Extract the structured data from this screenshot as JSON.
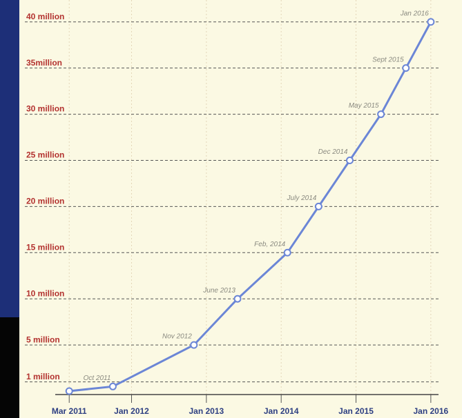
{
  "chart_data": {
    "type": "line",
    "x": [
      "2011-03",
      "2011-10",
      "2012-11",
      "2013-06",
      "2014-02",
      "2014-07",
      "2014-12",
      "2015-05",
      "2015-09",
      "2016-01"
    ],
    "series": [
      {
        "color": "#6b86d6",
        "values": [
          0,
          0.5,
          5,
          10,
          15,
          20,
          25,
          30,
          35,
          40
        ]
      }
    ],
    "point_labels": [
      null,
      "Oct 2011",
      "Nov 2012",
      "June 2013",
      "Feb, 2014",
      "July 2014",
      "Dec 2014",
      "May 2015",
      "Sept 2015",
      "Jan 2016"
    ],
    "xlim": [
      "2010-07",
      "2016-06"
    ],
    "xticks": [
      {
        "value": "2011-03",
        "label": "Mar 2011"
      },
      {
        "value": "2012-01",
        "label": "Jan 2012"
      },
      {
        "value": "2013-01",
        "label": "Jan 2013"
      },
      {
        "value": "2014-01",
        "label": "Jan 2014"
      },
      {
        "value": "2015-01",
        "label": "Jan 2015"
      },
      {
        "value": "2016-01",
        "label": "Jan 2016"
      }
    ],
    "ylim": [
      0,
      42
    ],
    "yticks": [
      {
        "value": 1,
        "label": "1 million"
      },
      {
        "value": 5,
        "label": "5 million"
      },
      {
        "value": 10,
        "label": "10 million"
      },
      {
        "value": 15,
        "label": "15 million"
      },
      {
        "value": 20,
        "label": "20 million"
      },
      {
        "value": 25,
        "label": "25 million"
      },
      {
        "value": 30,
        "label": "30 million"
      },
      {
        "value": 35,
        "label": "35million"
      },
      {
        "value": 40,
        "label": "40 million"
      }
    ],
    "grid": true
  }
}
